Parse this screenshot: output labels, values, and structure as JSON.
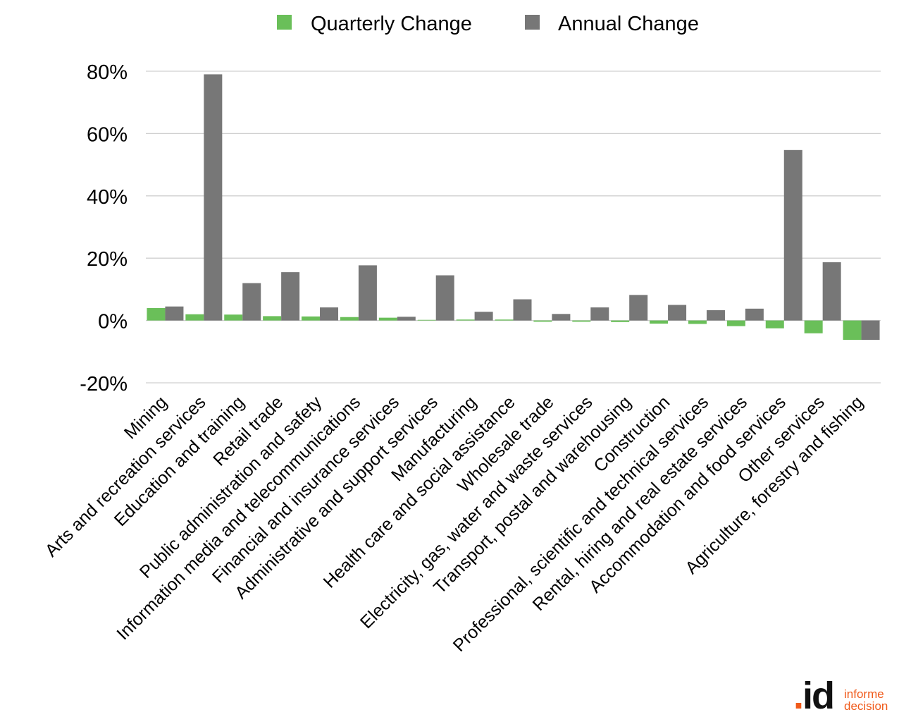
{
  "chart_data": {
    "type": "bar",
    "categories": [
      "Mining",
      "Arts and recreation services",
      "Education and training",
      "Retail trade",
      "Public administration and safety",
      "Information media and telecommunications",
      "Financial and insurance services",
      "Administrative and support services",
      "Manufacturing",
      "Health care and social assistance",
      "Wholesale trade",
      "Electricity, gas, water and waste services",
      "Transport, postal and warehousing",
      "Construction",
      "Professional, scientific and technical services",
      "Rental, hiring and real estate services",
      "Accommodation and food services",
      "Other services",
      "Agriculture, forestry and fishing"
    ],
    "series": [
      {
        "name": "Quarterly Change",
        "color": "#6abf59",
        "values": [
          4.0,
          2.0,
          1.9,
          1.4,
          1.3,
          1.1,
          0.9,
          0.2,
          0.3,
          0.3,
          -0.4,
          -0.4,
          -0.5,
          -1.0,
          -1.1,
          -1.8,
          -2.5,
          -4.1,
          -6.2
        ]
      },
      {
        "name": "Annual Change",
        "color": "#777777",
        "values": [
          4.5,
          79.0,
          12.0,
          15.5,
          4.2,
          17.7,
          1.2,
          14.5,
          2.8,
          6.8,
          2.1,
          4.2,
          8.2,
          5.0,
          3.3,
          3.8,
          54.7,
          18.7,
          -6.2
        ]
      }
    ],
    "yticks": [
      -20,
      0,
      20,
      40,
      60,
      80
    ],
    "ylim": [
      -20,
      80
    ],
    "grid": true,
    "legend_position": "top"
  },
  "logo": {
    "mark_dot": ".",
    "mark_text": "id",
    "line1": "informe",
    "line2": "decision"
  }
}
